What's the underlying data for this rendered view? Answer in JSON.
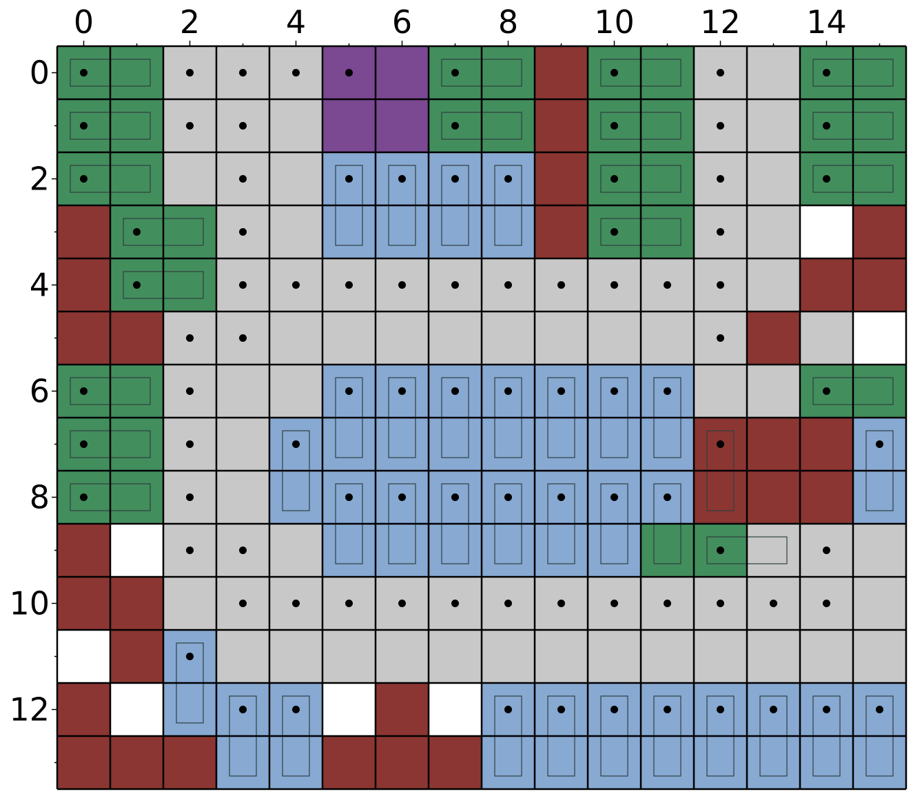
{
  "grid": {
    "rows": 14,
    "cols": 16,
    "x_tick_labels": [
      "0",
      "2",
      "4",
      "6",
      "8",
      "10",
      "12",
      "14"
    ],
    "y_tick_labels": [
      "0",
      "2",
      "4",
      "6",
      "8",
      "10",
      "12"
    ],
    "x_tick_values": [
      0,
      2,
      4,
      6,
      8,
      10,
      12,
      14
    ],
    "y_tick_values": [
      0,
      2,
      4,
      6,
      8,
      10,
      12
    ],
    "legend_codes": {
      "G": "green",
      "g": "gray",
      "B": "blue",
      "P": "purple",
      "R": "red",
      "W": "white"
    },
    "colors": {
      "green": "#438e5d",
      "gray": "#c8c8c8",
      "blue": "#87a9d2",
      "purple": "#7b4892",
      "red": "#8b3632",
      "white": "#ffffff",
      "grid_line": "#000000",
      "piece_outline": "#2f3f3f",
      "dot": "#000000"
    },
    "cells": [
      "GGgggPPGGRGGggGG",
      "GGgggPPGGRGGggGG",
      "GGgggBBBBRGGggGG",
      "RGGggBBBBRGGggWR",
      "RGGgggggggggggRR",
      "RRgggggggggggRgW",
      "GGgggBBBBBBBggGG",
      "GGggBBBBBBBBRRRB",
      "GGggBBBBBBBBRRRB",
      "RWgggBBBBBBGGggg",
      "RRgggggggggggggg",
      "WRBggggggggggggg",
      "RWBBBWRWBBBBBBBB",
      "RRRBBRRRBBBBBBBB"
    ],
    "dots": [
      [
        0,
        0
      ],
      [
        0,
        2
      ],
      [
        0,
        3
      ],
      [
        0,
        4
      ],
      [
        0,
        5
      ],
      [
        0,
        7
      ],
      [
        0,
        10
      ],
      [
        0,
        12
      ],
      [
        0,
        14
      ],
      [
        1,
        0
      ],
      [
        1,
        2
      ],
      [
        1,
        3
      ],
      [
        1,
        7
      ],
      [
        1,
        10
      ],
      [
        1,
        12
      ],
      [
        1,
        14
      ],
      [
        2,
        0
      ],
      [
        2,
        3
      ],
      [
        2,
        5
      ],
      [
        2,
        6
      ],
      [
        2,
        7
      ],
      [
        2,
        8
      ],
      [
        2,
        10
      ],
      [
        2,
        12
      ],
      [
        2,
        14
      ],
      [
        3,
        1
      ],
      [
        3,
        3
      ],
      [
        3,
        10
      ],
      [
        3,
        12
      ],
      [
        4,
        1
      ],
      [
        4,
        3
      ],
      [
        4,
        4
      ],
      [
        4,
        5
      ],
      [
        4,
        6
      ],
      [
        4,
        7
      ],
      [
        4,
        8
      ],
      [
        4,
        9
      ],
      [
        4,
        10
      ],
      [
        4,
        11
      ],
      [
        4,
        12
      ],
      [
        5,
        2
      ],
      [
        5,
        3
      ],
      [
        5,
        12
      ],
      [
        6,
        0
      ],
      [
        6,
        2
      ],
      [
        6,
        5
      ],
      [
        6,
        6
      ],
      [
        6,
        7
      ],
      [
        6,
        8
      ],
      [
        6,
        9
      ],
      [
        6,
        10
      ],
      [
        6,
        11
      ],
      [
        6,
        14
      ],
      [
        7,
        0
      ],
      [
        7,
        2
      ],
      [
        7,
        4
      ],
      [
        7,
        12
      ],
      [
        7,
        15
      ],
      [
        8,
        0
      ],
      [
        8,
        2
      ],
      [
        8,
        5
      ],
      [
        8,
        6
      ],
      [
        8,
        7
      ],
      [
        8,
        8
      ],
      [
        8,
        9
      ],
      [
        8,
        10
      ],
      [
        8,
        11
      ],
      [
        9,
        2
      ],
      [
        9,
        3
      ],
      [
        9,
        12
      ],
      [
        9,
        14
      ],
      [
        10,
        3
      ],
      [
        10,
        4
      ],
      [
        10,
        5
      ],
      [
        10,
        6
      ],
      [
        10,
        7
      ],
      [
        10,
        8
      ],
      [
        10,
        9
      ],
      [
        10,
        10
      ],
      [
        10,
        11
      ],
      [
        10,
        12
      ],
      [
        10,
        13
      ],
      [
        10,
        14
      ],
      [
        11,
        2
      ],
      [
        12,
        3
      ],
      [
        12,
        4
      ],
      [
        12,
        8
      ],
      [
        12,
        9
      ],
      [
        12,
        10
      ],
      [
        12,
        11
      ],
      [
        12,
        12
      ],
      [
        12,
        13
      ],
      [
        12,
        14
      ],
      [
        12,
        15
      ]
    ],
    "h_pieces": [
      [
        0,
        0
      ],
      [
        0,
        7
      ],
      [
        0,
        10
      ],
      [
        0,
        14
      ],
      [
        1,
        0
      ],
      [
        1,
        7
      ],
      [
        1,
        10
      ],
      [
        1,
        14
      ],
      [
        2,
        0
      ],
      [
        2,
        10
      ],
      [
        2,
        14
      ],
      [
        3,
        1
      ],
      [
        3,
        10
      ],
      [
        4,
        1
      ],
      [
        6,
        0
      ],
      [
        6,
        14
      ],
      [
        7,
        0
      ],
      [
        8,
        0
      ],
      [
        9,
        12
      ]
    ],
    "v_pieces": [
      [
        2,
        5
      ],
      [
        2,
        6
      ],
      [
        2,
        7
      ],
      [
        2,
        8
      ],
      [
        6,
        5
      ],
      [
        6,
        6
      ],
      [
        6,
        7
      ],
      [
        6,
        8
      ],
      [
        6,
        9
      ],
      [
        6,
        10
      ],
      [
        6,
        11
      ],
      [
        7,
        4
      ],
      [
        7,
        12
      ],
      [
        7,
        15
      ],
      [
        8,
        5
      ],
      [
        8,
        6
      ],
      [
        8,
        7
      ],
      [
        8,
        8
      ],
      [
        8,
        9
      ],
      [
        8,
        10
      ],
      [
        8,
        11
      ],
      [
        11,
        2
      ],
      [
        12,
        3
      ],
      [
        12,
        4
      ],
      [
        12,
        8
      ],
      [
        12,
        9
      ],
      [
        12,
        10
      ],
      [
        12,
        11
      ],
      [
        12,
        12
      ],
      [
        12,
        13
      ],
      [
        12,
        14
      ],
      [
        12,
        15
      ]
    ]
  }
}
